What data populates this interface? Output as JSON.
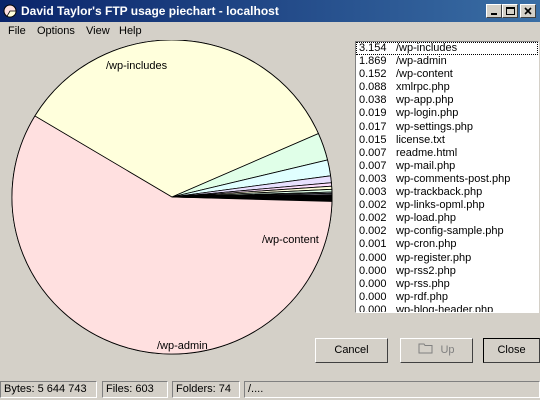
{
  "window": {
    "title": "David Taylor's FTP usage piechart - localhost"
  },
  "menu": [
    "File",
    "Options",
    "View",
    "Help"
  ],
  "chart_data": {
    "type": "pie",
    "slices": [
      {
        "label": "/wp-includes",
        "value": 3.154,
        "color": "#ffe0e0"
      },
      {
        "label": "/wp-admin",
        "value": 1.869,
        "color": "#ffffdc"
      },
      {
        "label": "/wp-content",
        "value": 0.152,
        "color": "#e0ffe8"
      },
      {
        "label": "xmlrpc.php",
        "value": 0.088,
        "color": "#e0ffff"
      },
      {
        "label": "wp-app.php",
        "value": 0.038,
        "color": "#e8e0ff"
      },
      {
        "label": "wp-login.php",
        "value": 0.019,
        "color": "#ffe0ff"
      },
      {
        "label": "wp-settings.php",
        "value": 0.017,
        "color": "#ffffdc"
      },
      {
        "label": "license.txt",
        "value": 0.015,
        "color": "#e0ffe8"
      },
      {
        "label": "readme.html",
        "value": 0.007,
        "color": "#e0ffff"
      },
      {
        "label": "wp-mail.php",
        "value": 0.007,
        "color": "#e8e0ff"
      },
      {
        "label": "wp-comments-post.php",
        "value": 0.003,
        "color": "#ffe0ff"
      },
      {
        "label": "wp-trackback.php",
        "value": 0.003,
        "color": "#ffffdc"
      },
      {
        "label": "wp-links-opml.php",
        "value": 0.002,
        "color": "#e0ffe8"
      },
      {
        "label": "wp-load.php",
        "value": 0.002,
        "color": "#e0ffff"
      },
      {
        "label": "wp-config-sample.php",
        "value": 0.002,
        "color": "#e8e0ff"
      },
      {
        "label": "wp-cron.php",
        "value": 0.001,
        "color": "#ffe0ff"
      },
      {
        "label": "wp-register.php",
        "value": 0.0,
        "color": "#ffffdc"
      },
      {
        "label": "wp-rss2.php",
        "value": 0.0,
        "color": "#e0ffe8"
      },
      {
        "label": "wp-rss.php",
        "value": 0.0,
        "color": "#e0ffff"
      },
      {
        "label": "wp-rdf.php",
        "value": 0.0,
        "color": "#e8e0ff"
      },
      {
        "label": "wp-blog-header.php",
        "value": 0.0,
        "color": "#ffe0ff"
      }
    ],
    "visible_labels": [
      "/wp-includes",
      "/wp-admin",
      "/wp-content"
    ]
  },
  "list": [
    {
      "value": "3.154",
      "name": "/wp-includes"
    },
    {
      "value": "1.869",
      "name": "/wp-admin"
    },
    {
      "value": "0.152",
      "name": "/wp-content"
    },
    {
      "value": "0.088",
      "name": "xmlrpc.php"
    },
    {
      "value": "0.038",
      "name": "wp-app.php"
    },
    {
      "value": "0.019",
      "name": "wp-login.php"
    },
    {
      "value": "0.017",
      "name": "wp-settings.php"
    },
    {
      "value": "0.015",
      "name": "license.txt"
    },
    {
      "value": "0.007",
      "name": "readme.html"
    },
    {
      "value": "0.007",
      "name": "wp-mail.php"
    },
    {
      "value": "0.003",
      "name": "wp-comments-post.php"
    },
    {
      "value": "0.003",
      "name": "wp-trackback.php"
    },
    {
      "value": "0.002",
      "name": "wp-links-opml.php"
    },
    {
      "value": "0.002",
      "name": "wp-load.php"
    },
    {
      "value": "0.002",
      "name": "wp-config-sample.php"
    },
    {
      "value": "0.001",
      "name": "wp-cron.php"
    },
    {
      "value": "0.000",
      "name": "wp-register.php"
    },
    {
      "value": "0.000",
      "name": "wp-rss2.php"
    },
    {
      "value": "0.000",
      "name": "wp-rss.php"
    },
    {
      "value": "0.000",
      "name": "wp-rdf.php"
    },
    {
      "value": "0.000",
      "name": "wp-blog-header.php"
    }
  ],
  "buttons": {
    "cancel": "Cancel",
    "up": "Up",
    "close": "Close"
  },
  "status": {
    "bytes": "Bytes: 5 644 743",
    "files": "Files: 603",
    "folders": "Folders: 74",
    "path": "/...."
  }
}
